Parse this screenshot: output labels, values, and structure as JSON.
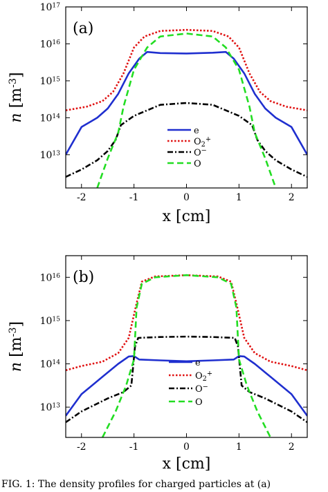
{
  "chart_data": [
    {
      "type": "line",
      "panel_label": "(a)",
      "xlabel": "x [cm]",
      "ylabel": "n [m^-3]",
      "xlim": [
        -2.3,
        2.3
      ],
      "ylim_log10": [
        12.1,
        17
      ],
      "yscale": "log",
      "x_ticks": [
        "-2",
        "-1",
        "0",
        "1",
        "2"
      ],
      "y_ticks": [
        "10^13",
        "10^14",
        "10^15",
        "10^16",
        "10^17"
      ],
      "legend_position": "center",
      "series": [
        {
          "name": "e",
          "color": "#1f2fcf",
          "style": "solid",
          "x": [
            -2.3,
            -2.0,
            -1.7,
            -1.5,
            -1.3,
            -1.1,
            -0.9,
            -0.75,
            -0.5,
            0,
            0.5,
            0.75,
            0.9,
            1.1,
            1.3,
            1.5,
            1.7,
            2.0,
            2.3
          ],
          "log10": [
            13.0,
            13.75,
            14.0,
            14.25,
            14.65,
            15.2,
            15.6,
            15.78,
            15.75,
            15.74,
            15.76,
            15.78,
            15.6,
            15.2,
            14.65,
            14.25,
            14.0,
            13.75,
            13.0
          ]
        },
        {
          "name": "O2+",
          "color": "#e01010",
          "style": "dotted",
          "x": [
            -2.3,
            -1.9,
            -1.6,
            -1.4,
            -1.2,
            -1.0,
            -0.8,
            -0.5,
            0,
            0.5,
            0.8,
            1.0,
            1.2,
            1.4,
            1.6,
            1.9,
            2.3
          ],
          "log10": [
            14.2,
            14.3,
            14.45,
            14.7,
            15.2,
            15.9,
            16.2,
            16.35,
            16.38,
            16.35,
            16.2,
            15.9,
            15.2,
            14.7,
            14.45,
            14.3,
            14.2
          ]
        },
        {
          "name": "O-",
          "color": "#000000",
          "style": "dashdot",
          "x": [
            -2.3,
            -2.0,
            -1.7,
            -1.5,
            -1.35,
            -1.25,
            -1.0,
            -0.5,
            0,
            0.5,
            1.0,
            1.25,
            1.35,
            1.5,
            1.7,
            2.0,
            2.3
          ],
          "log10": [
            12.4,
            12.6,
            12.85,
            13.1,
            13.4,
            13.8,
            14.05,
            14.35,
            14.4,
            14.35,
            14.05,
            13.8,
            13.4,
            13.1,
            12.85,
            12.6,
            12.4
          ]
        },
        {
          "name": "O",
          "color": "#22dd22",
          "style": "dashed",
          "x": [
            -1.7,
            -1.5,
            -1.3,
            -1.2,
            -1.0,
            -0.75,
            -0.5,
            0,
            0.5,
            0.75,
            1.0,
            1.2,
            1.3,
            1.5,
            1.7
          ],
          "log10": [
            12.1,
            12.9,
            13.6,
            14.3,
            15.3,
            15.9,
            16.2,
            16.28,
            16.2,
            15.9,
            15.3,
            14.3,
            13.6,
            12.9,
            12.1
          ]
        }
      ]
    },
    {
      "type": "line",
      "panel_label": "(b)",
      "xlabel": "x [cm]",
      "ylabel": "n [m^-3]",
      "xlim": [
        -2.3,
        2.3
      ],
      "ylim_log10": [
        12.3,
        16.5
      ],
      "yscale": "log",
      "x_ticks": [
        "-2",
        "-1",
        "0",
        "1",
        "2"
      ],
      "y_ticks": [
        "10^13",
        "10^14",
        "10^15",
        "10^16"
      ],
      "legend_position": "lower-center",
      "series": [
        {
          "name": "e",
          "color": "#1f2fcf",
          "style": "solid",
          "x": [
            -2.3,
            -2.0,
            -1.6,
            -1.3,
            -1.1,
            -1.0,
            -0.9,
            -0.5,
            0,
            0.5,
            0.9,
            1.0,
            1.1,
            1.3,
            1.6,
            2.0,
            2.3
          ],
          "log10": [
            12.8,
            13.3,
            13.7,
            14.0,
            14.17,
            14.18,
            14.1,
            14.08,
            14.06,
            14.08,
            14.1,
            14.18,
            14.17,
            14.0,
            13.7,
            13.3,
            12.8
          ]
        },
        {
          "name": "O2+",
          "color": "#e01010",
          "style": "dotted",
          "x": [
            -2.3,
            -2.0,
            -1.6,
            -1.3,
            -1.1,
            -0.95,
            -0.85,
            -0.6,
            0,
            0.6,
            0.85,
            0.95,
            1.1,
            1.3,
            1.6,
            2.0,
            2.3
          ],
          "log10": [
            13.85,
            13.95,
            14.05,
            14.25,
            14.6,
            15.4,
            15.9,
            16.02,
            16.05,
            16.02,
            15.9,
            15.4,
            14.6,
            14.25,
            14.05,
            13.95,
            13.85
          ]
        },
        {
          "name": "O-",
          "color": "#000000",
          "style": "dashdot",
          "x": [
            -2.3,
            -2.0,
            -1.5,
            -1.2,
            -1.05,
            -0.98,
            -0.92,
            -0.5,
            0,
            0.5,
            0.92,
            0.98,
            1.05,
            1.2,
            1.5,
            2.0,
            2.3
          ],
          "log10": [
            12.65,
            12.9,
            13.2,
            13.35,
            13.5,
            14.4,
            14.6,
            14.62,
            14.63,
            14.62,
            14.6,
            14.4,
            13.5,
            13.35,
            13.2,
            12.9,
            12.65
          ]
        },
        {
          "name": "O",
          "color": "#22dd22",
          "style": "dashed",
          "x": [
            -1.6,
            -1.35,
            -1.15,
            -1.0,
            -0.95,
            -0.85,
            -0.6,
            0,
            0.6,
            0.85,
            0.95,
            1.0,
            1.15,
            1.35,
            1.6
          ],
          "log10": [
            12.3,
            12.9,
            13.5,
            14.1,
            15.3,
            15.85,
            16.0,
            16.05,
            16.0,
            15.85,
            15.3,
            14.1,
            13.5,
            12.9,
            12.3
          ]
        }
      ]
    }
  ],
  "caption": "FIG. 1: The density profiles for charged particles at (a)"
}
